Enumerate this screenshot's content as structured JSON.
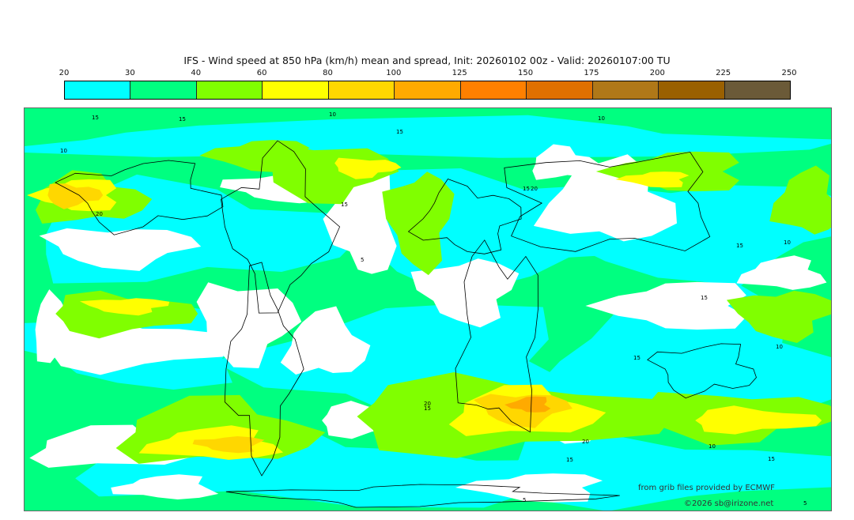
{
  "title": "IFS - Wind speed at 850 hPa (km/h) mean and spread, Init: 20260102 00z - Valid: 20260107:00 TU",
  "colorbar": {
    "ticks": [
      "20",
      "30",
      "40",
      "60",
      "80",
      "100",
      "125",
      "150",
      "175",
      "200",
      "225",
      "250"
    ],
    "colors": [
      "#00ffff",
      "#00ff80",
      "#80ff00",
      "#ffff00",
      "#ffd700",
      "#ffaa00",
      "#ff8000",
      "#e07000",
      "#b07818",
      "#9a6000",
      "#6b5a38"
    ]
  },
  "map": {
    "contour_labels": [
      {
        "text": "15"
      },
      {
        "text": "15"
      },
      {
        "text": "10"
      },
      {
        "text": "15"
      },
      {
        "text": "10"
      },
      {
        "text": "20"
      },
      {
        "text": "15"
      },
      {
        "text": "15"
      },
      {
        "text": "20"
      },
      {
        "text": "10"
      },
      {
        "text": "15"
      },
      {
        "text": "10"
      },
      {
        "text": "5"
      },
      {
        "text": "15"
      },
      {
        "text": "15"
      },
      {
        "text": "10"
      },
      {
        "text": "20"
      },
      {
        "text": "15"
      },
      {
        "text": "20"
      },
      {
        "text": "15"
      },
      {
        "text": "10"
      },
      {
        "text": "15"
      },
      {
        "text": "5"
      },
      {
        "text": "5"
      }
    ]
  },
  "credits": {
    "source": "from grib files provided by ECMWF",
    "copyright": "©2026 sb@irizone.net"
  }
}
